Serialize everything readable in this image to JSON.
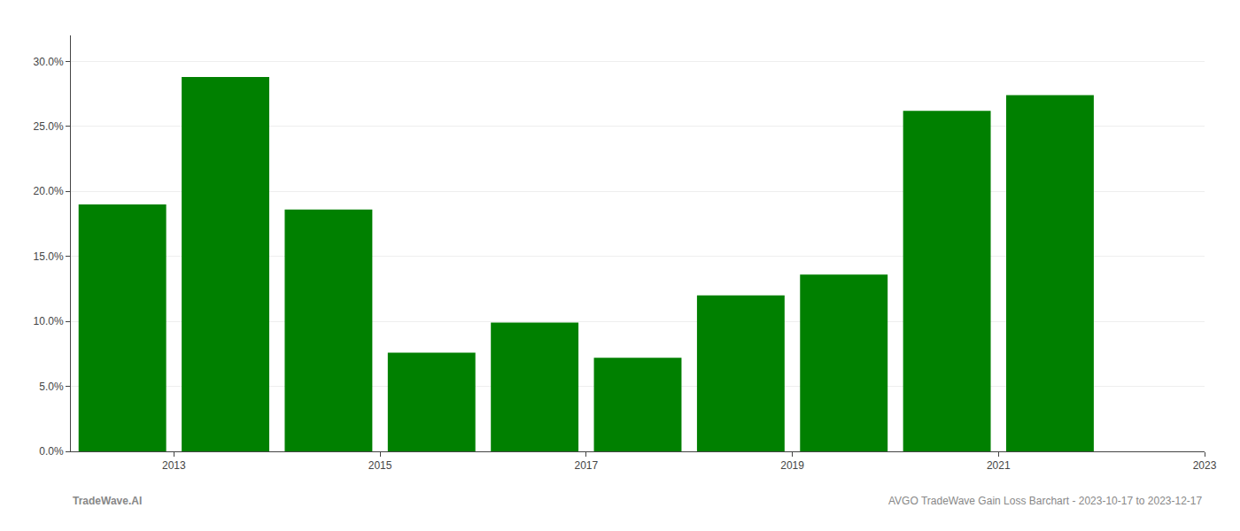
{
  "chart_data": {
    "type": "bar",
    "x": [
      2013,
      2014,
      2015,
      2016,
      2017,
      2018,
      2019,
      2020,
      2021,
      2022
    ],
    "values": [
      0.19,
      0.288,
      0.186,
      0.076,
      0.099,
      0.072,
      0.12,
      0.136,
      0.262,
      0.274
    ],
    "color": "#008000",
    "xlim": [
      2012.5,
      2023.5
    ],
    "xticks": [
      {
        "value": 2013.5,
        "label": "2013"
      },
      {
        "value": 2015.5,
        "label": "2015"
      },
      {
        "value": 2017.5,
        "label": "2017"
      },
      {
        "value": 2019.5,
        "label": "2019"
      },
      {
        "value": 2021.5,
        "label": "2021"
      },
      {
        "value": 2023.5,
        "label": "2023"
      }
    ],
    "ylim": [
      0,
      0.32
    ],
    "yticks": [
      {
        "value": 0.0,
        "label": "0.0%"
      },
      {
        "value": 0.05,
        "label": "5.0%"
      },
      {
        "value": 0.1,
        "label": "10.0%"
      },
      {
        "value": 0.15,
        "label": "15.0%"
      },
      {
        "value": 0.2,
        "label": "20.0%"
      },
      {
        "value": 0.25,
        "label": "25.0%"
      },
      {
        "value": 0.3,
        "label": "30.0%"
      }
    ],
    "grid": true,
    "annotations": [
      "TradeWave.AI",
      "AVGO TradeWave Gain Loss Barchart - 2023-10-17 to 2023-12-17"
    ]
  }
}
